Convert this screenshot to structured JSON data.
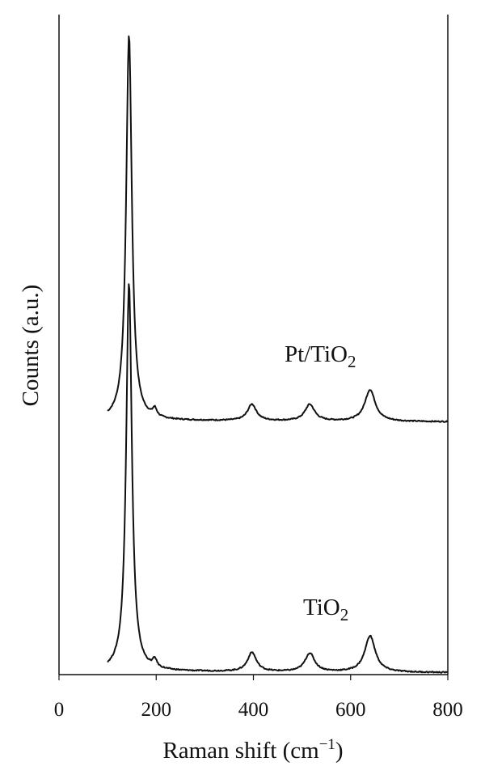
{
  "chart_data": {
    "type": "line",
    "xlabel": {
      "main": "Raman shift (cm",
      "sup": "−1",
      "tail": ")"
    },
    "ylabel": "Counts (a.u.)",
    "xlim": [
      0,
      800
    ],
    "ylim": [
      0,
      1
    ],
    "x_ticks": [
      0,
      200,
      400,
      600,
      800
    ],
    "x_tick_labels": [
      "0",
      "200",
      "400",
      "600",
      "800"
    ],
    "y_ticks": [],
    "grid": false,
    "legend": "none",
    "line_color": "#111111",
    "series": [
      {
        "name_main": "Pt/TiO",
        "name_sub": "2",
        "baseline": 0.385,
        "baseline_end": 0.383,
        "x_start": 100,
        "peaks": [
          {
            "x": 144,
            "height": 0.585,
            "width": 7
          },
          {
            "x": 197,
            "height": 0.012,
            "width": 5
          },
          {
            "x": 397,
            "height": 0.025,
            "width": 11
          },
          {
            "x": 516,
            "height": 0.025,
            "width": 12
          },
          {
            "x": 640,
            "height": 0.048,
            "width": 13
          }
        ]
      },
      {
        "name_main": "TiO",
        "name_sub": "2",
        "baseline": 0.005,
        "baseline_end": 0.003,
        "x_start": 100,
        "peaks": [
          {
            "x": 144,
            "height": 0.59,
            "width": 7
          },
          {
            "x": 197,
            "height": 0.012,
            "width": 5
          },
          {
            "x": 397,
            "height": 0.029,
            "width": 11
          },
          {
            "x": 516,
            "height": 0.028,
            "width": 12
          },
          {
            "x": 640,
            "height": 0.055,
            "width": 13
          }
        ]
      }
    ]
  }
}
